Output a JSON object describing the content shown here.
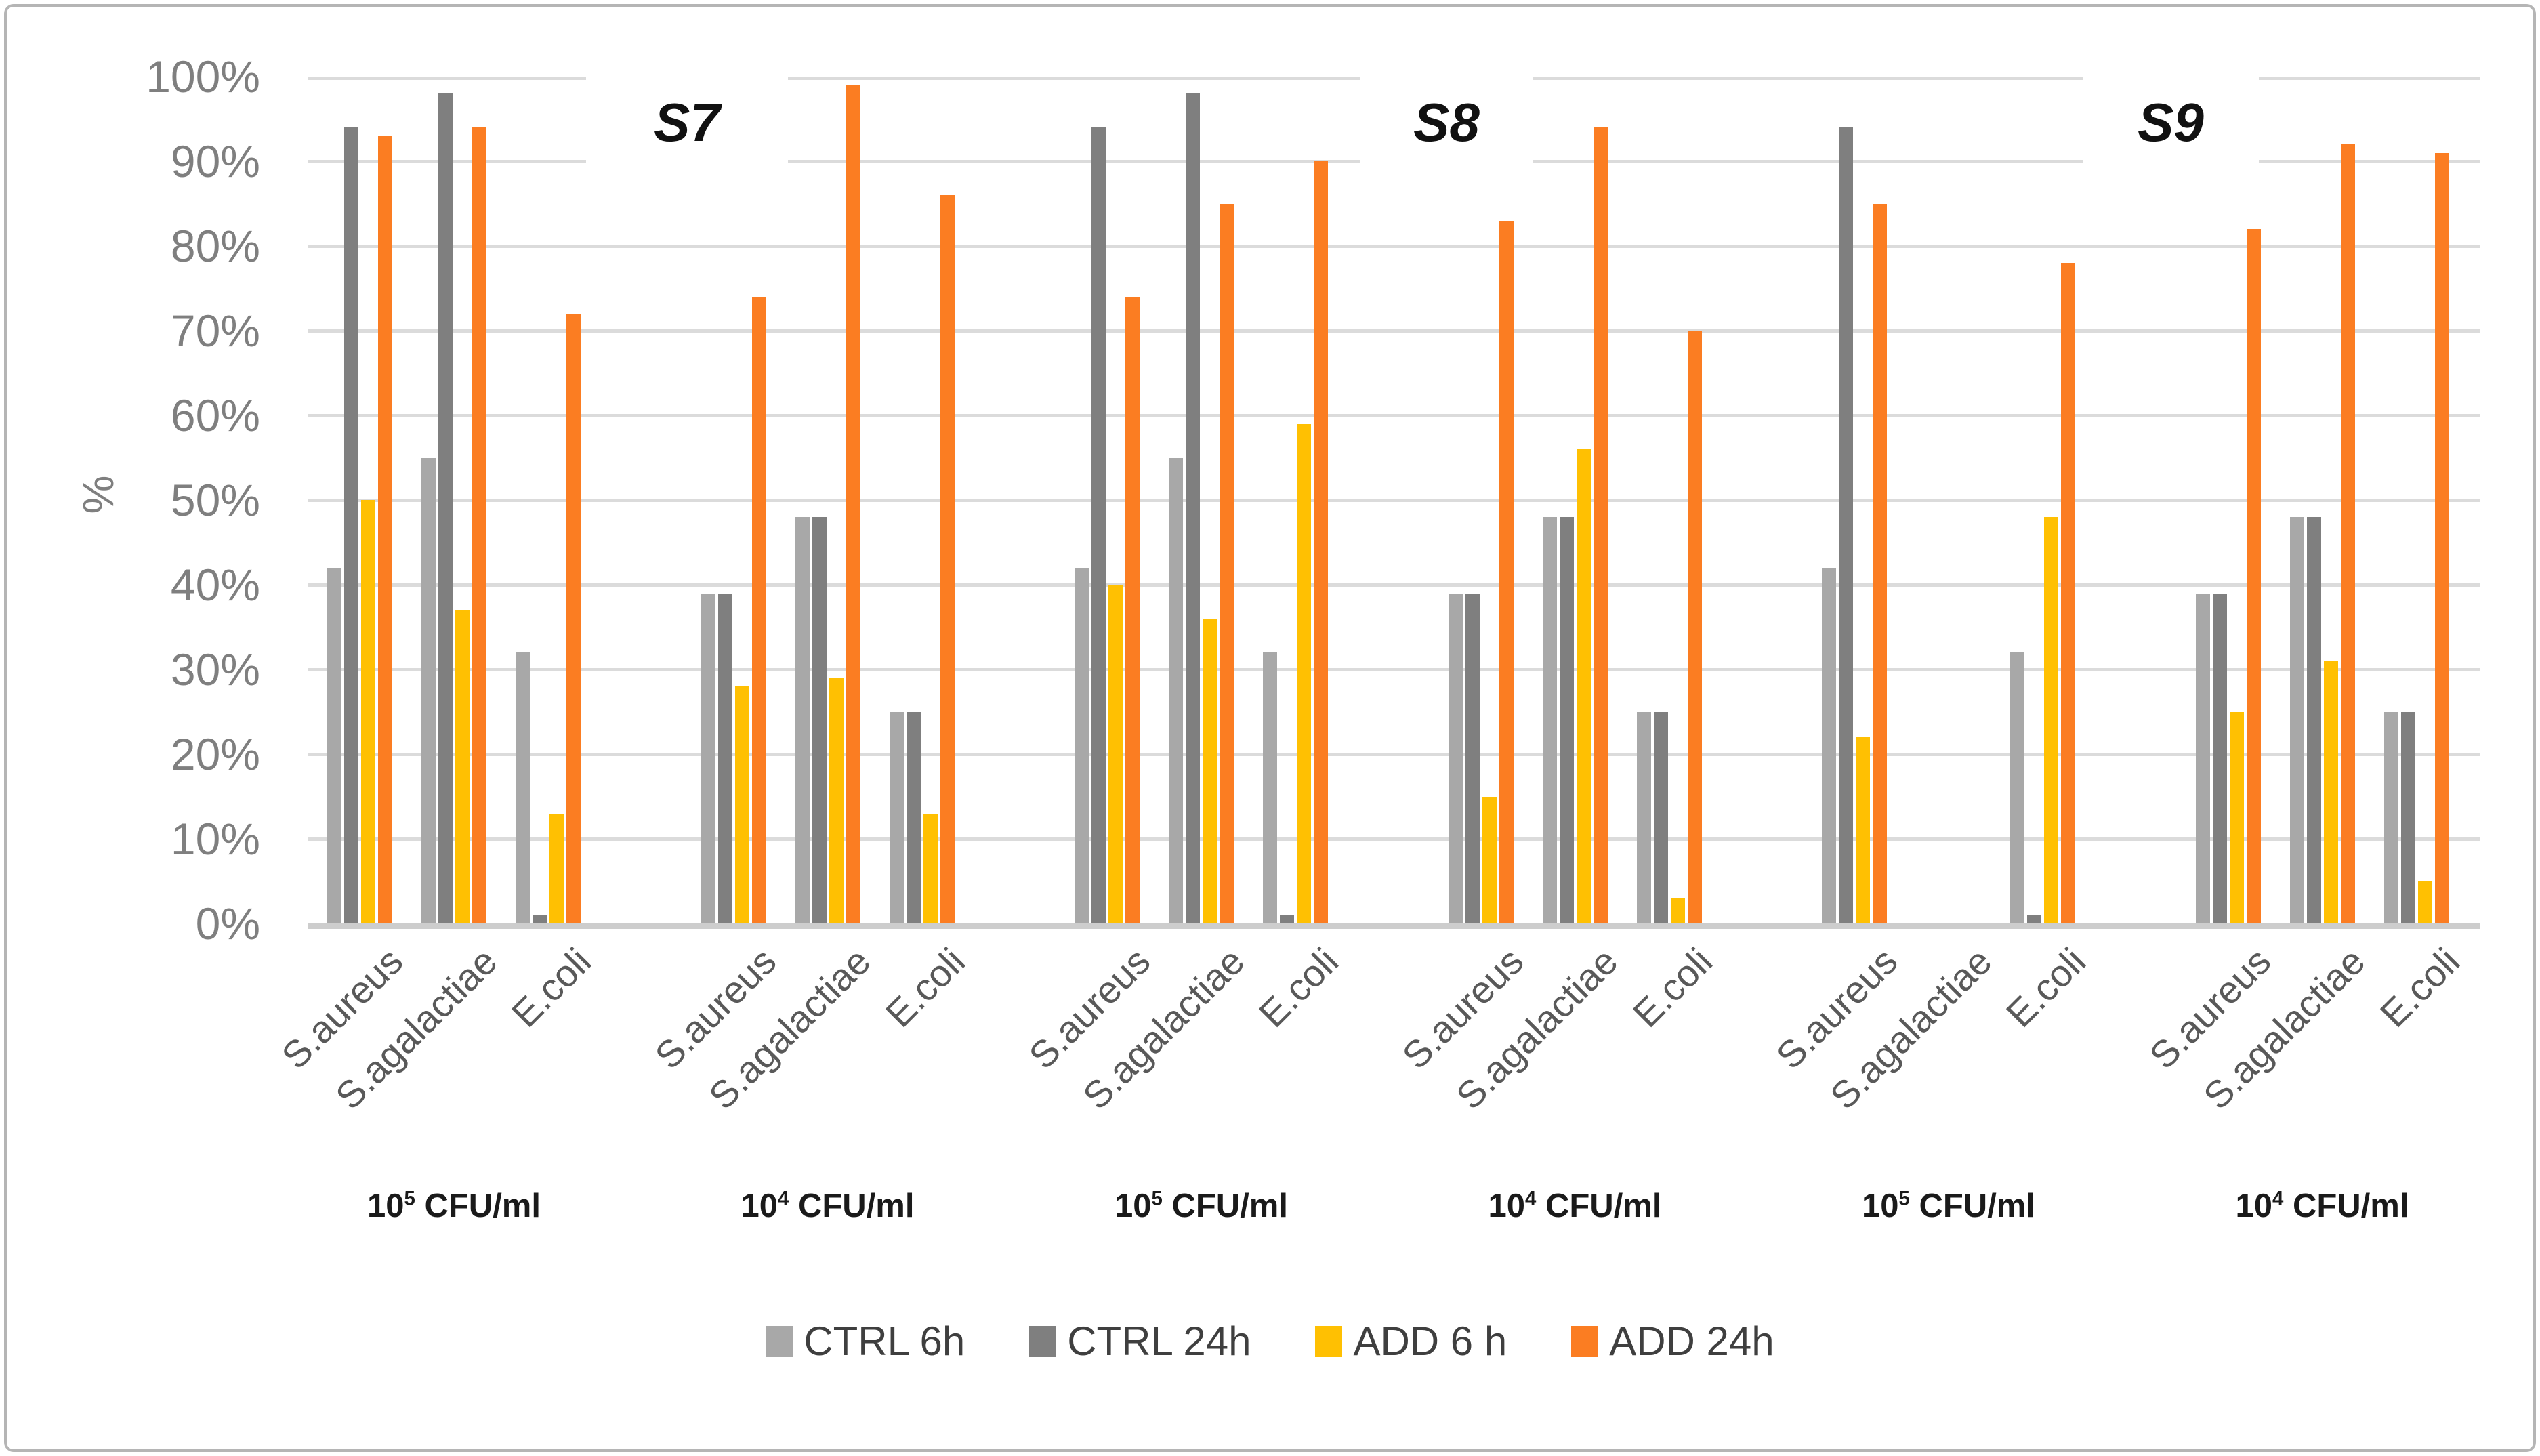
{
  "chart_data": {
    "type": "bar",
    "title": "",
    "ylabel": "%",
    "xlabel": "",
    "ylim": [
      0,
      100
    ],
    "y_ticks": [
      "0%",
      "10%",
      "20%",
      "30%",
      "40%",
      "50%",
      "60%",
      "70%",
      "80%",
      "90%",
      "100%"
    ],
    "grid": "horizontal",
    "legend_position": "bottom",
    "sections": [
      "S7",
      "S8",
      "S9"
    ],
    "series": [
      {
        "name": "CTRL 6h",
        "color": "#A8A8A8"
      },
      {
        "name": "CTRL 24h",
        "color": "#7F7F7F"
      },
      {
        "name": "ADD 6 h",
        "color": "#FFC002"
      },
      {
        "name": "ADD 24h",
        "color": "#FB7D22"
      }
    ],
    "groups": [
      {
        "section": "S7",
        "conc_base": "10",
        "conc_exp": "5",
        "conc_unit": "CFU/ml",
        "clusters": [
          {
            "label": "S.aureus",
            "values": [
              42,
              94,
              50,
              93
            ]
          },
          {
            "label": "S.agalactiae",
            "values": [
              55,
              98,
              37,
              94
            ]
          },
          {
            "label": "E.coli",
            "values": [
              32,
              1,
              13,
              72
            ]
          }
        ]
      },
      {
        "section": "S7",
        "conc_base": "10",
        "conc_exp": "4",
        "conc_unit": "CFU/ml",
        "clusters": [
          {
            "label": "S.aureus",
            "values": [
              39,
              39,
              28,
              74
            ]
          },
          {
            "label": "S.agalactiae",
            "values": [
              48,
              48,
              29,
              99
            ]
          },
          {
            "label": "E.coli",
            "values": [
              25,
              25,
              13,
              86
            ]
          }
        ]
      },
      {
        "section": "S8",
        "conc_base": "10",
        "conc_exp": "5",
        "conc_unit": "CFU/ml",
        "clusters": [
          {
            "label": "S.aureus",
            "values": [
              42,
              94,
              40,
              74
            ]
          },
          {
            "label": "S.agalactiae",
            "values": [
              55,
              98,
              36,
              85
            ]
          },
          {
            "label": "E.coli",
            "values": [
              32,
              1,
              59,
              90
            ]
          }
        ]
      },
      {
        "section": "S8",
        "conc_base": "10",
        "conc_exp": "4",
        "conc_unit": "CFU/ml",
        "clusters": [
          {
            "label": "S.aureus",
            "values": [
              39,
              39,
              15,
              83
            ]
          },
          {
            "label": "S.agalactiae",
            "values": [
              48,
              48,
              56,
              94
            ]
          },
          {
            "label": "E.coli",
            "values": [
              25,
              25,
              3,
              70
            ]
          }
        ]
      },
      {
        "section": "S9",
        "conc_base": "10",
        "conc_exp": "5",
        "conc_unit": "CFU/ml",
        "clusters": [
          {
            "label": "S.aureus",
            "values": [
              42,
              94,
              22,
              85
            ]
          },
          {
            "label": "S.agalactiae",
            "values": [
              0,
              0,
              0,
              0
            ]
          },
          {
            "label": "E.coli",
            "values": [
              32,
              1,
              48,
              78
            ]
          }
        ]
      },
      {
        "section": "S9",
        "conc_base": "10",
        "conc_exp": "4",
        "conc_unit": "CFU/ml",
        "clusters": [
          {
            "label": "S.aureus",
            "values": [
              39,
              39,
              25,
              82
            ]
          },
          {
            "label": "S.agalactiae",
            "values": [
              48,
              48,
              31,
              92
            ]
          },
          {
            "label": "E.coli",
            "values": [
              25,
              25,
              5,
              91
            ]
          }
        ]
      }
    ]
  },
  "colors": {
    "background": "#FFFFFF",
    "frame_border": "#B5B5B5",
    "gridline": "#DBDBDB",
    "axis_line": "#CDCDCD",
    "tick_label": "#7F7F7F",
    "category_label": "#595959",
    "group_label": "#1A1A1A",
    "section_label": "#111111",
    "legend_label": "#3F3F3F"
  }
}
